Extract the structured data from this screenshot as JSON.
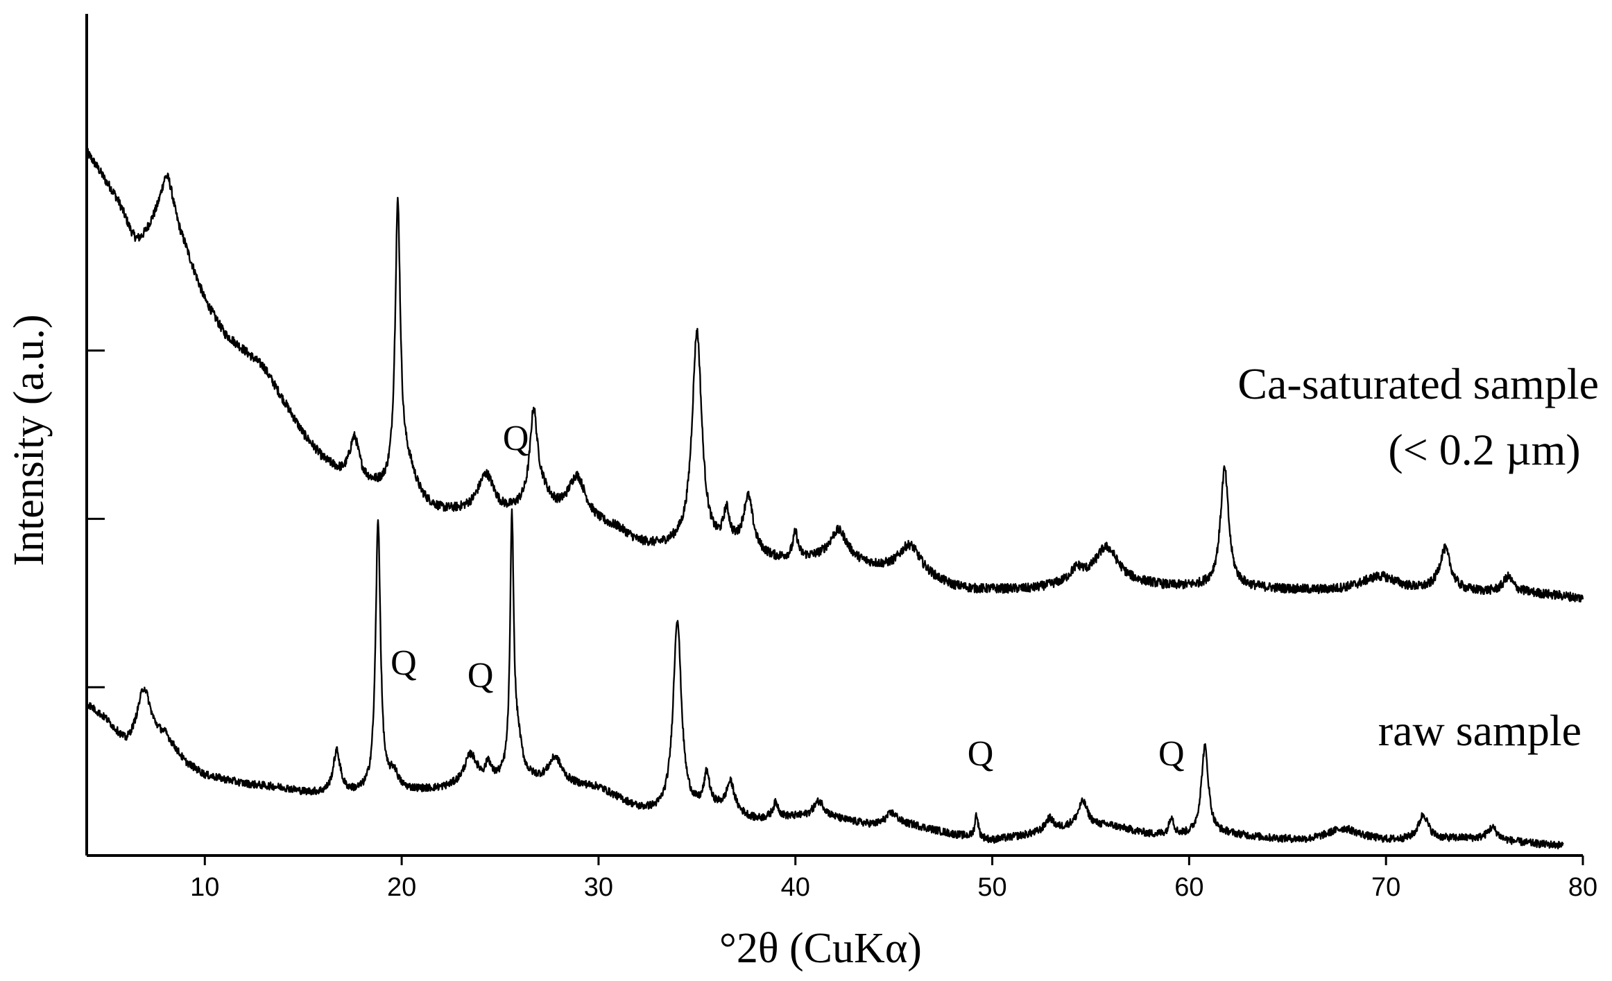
{
  "chart_data": {
    "type": "line",
    "title": "",
    "xlabel": "°2θ (CuKα)",
    "ylabel": "Intensity (a.u.)",
    "xlim": [
      4,
      80
    ],
    "ylim": [
      0,
      100
    ],
    "x_ticks": [
      10,
      20,
      30,
      40,
      50,
      60,
      70,
      80
    ],
    "y_ticks": [
      20,
      40,
      60
    ],
    "y_tick_labels_shown": false,
    "grid": false,
    "legend": "none",
    "line_color": "#000000",
    "series": [
      {
        "name": "Ca-saturated sample",
        "label_lines": [
          "Ca-saturated sample",
          "(< 0.2 µm)"
        ],
        "x_range": [
          4,
          80
        ],
        "background": [
          [
            4,
            84
          ],
          [
            5,
            81
          ],
          [
            6,
            79
          ],
          [
            7,
            77
          ],
          [
            8,
            76
          ],
          [
            9,
            72
          ],
          [
            10,
            66
          ],
          [
            11,
            62
          ],
          [
            12,
            60
          ],
          [
            13,
            58
          ],
          [
            14,
            54
          ],
          [
            15,
            50
          ],
          [
            16,
            47
          ],
          [
            17,
            45
          ],
          [
            18,
            44
          ],
          [
            19,
            43
          ],
          [
            20,
            42
          ],
          [
            21,
            41
          ],
          [
            22,
            40.5
          ],
          [
            23,
            40.5
          ],
          [
            24,
            40.5
          ],
          [
            25,
            40
          ],
          [
            26,
            40
          ],
          [
            27,
            39.5
          ],
          [
            28,
            39.5
          ],
          [
            29,
            39.5
          ],
          [
            30,
            39
          ],
          [
            31,
            38.5
          ],
          [
            32,
            37
          ],
          [
            33,
            36.5
          ],
          [
            34,
            36.5
          ],
          [
            35,
            36
          ],
          [
            36,
            36
          ],
          [
            37,
            36
          ],
          [
            38,
            35.5
          ],
          [
            39,
            35
          ],
          [
            40,
            35
          ],
          [
            41,
            35
          ],
          [
            42,
            35
          ],
          [
            43,
            34.5
          ],
          [
            44,
            34
          ],
          [
            45,
            33.5
          ],
          [
            46,
            33.2
          ],
          [
            47,
            32.5
          ],
          [
            48,
            31.8
          ],
          [
            49,
            31.5
          ],
          [
            50,
            31.5
          ],
          [
            51,
            31.5
          ],
          [
            52,
            31.5
          ],
          [
            53,
            31.8
          ],
          [
            54,
            32
          ],
          [
            55,
            32
          ],
          [
            56,
            32
          ],
          [
            57,
            32
          ],
          [
            58,
            32
          ],
          [
            59,
            31.8
          ],
          [
            60,
            31.8
          ],
          [
            61,
            31.8
          ],
          [
            62,
            31.8
          ],
          [
            63,
            31.7
          ],
          [
            64,
            31.6
          ],
          [
            65,
            31.5
          ],
          [
            66,
            31.4
          ],
          [
            67,
            31.3
          ],
          [
            68,
            31.3
          ],
          [
            69,
            31.3
          ],
          [
            70,
            31.3
          ],
          [
            71,
            31.2
          ],
          [
            72,
            31.2
          ],
          [
            73,
            31.2
          ],
          [
            74,
            31.2
          ],
          [
            75,
            31.2
          ],
          [
            76,
            31.2
          ],
          [
            77,
            31.2
          ],
          [
            78,
            31
          ],
          [
            79,
            30.8
          ],
          [
            80,
            30.5
          ]
        ],
        "peaks": [
          {
            "pos": 6.5,
            "height": -5,
            "width": 0.8
          },
          {
            "pos": 8.1,
            "height": 6,
            "width": 0.45
          },
          {
            "pos": 17.6,
            "height": 5,
            "width": 0.3
          },
          {
            "pos": 19.8,
            "height": 33,
            "width": 0.16
          },
          {
            "pos": 20.3,
            "height": 4,
            "width": 0.6
          },
          {
            "pos": 24.3,
            "height": 4.5,
            "width": 0.5
          },
          {
            "pos": 26.7,
            "height": 10,
            "width": 0.22
          },
          {
            "pos": 27.0,
            "height": 3.5,
            "width": 0.7
          },
          {
            "pos": 28.9,
            "height": 5,
            "width": 0.55
          },
          {
            "pos": 35.0,
            "height": 26,
            "width": 0.3
          },
          {
            "pos": 36.5,
            "height": 4,
            "width": 0.2
          },
          {
            "pos": 37.6,
            "height": 6.5,
            "width": 0.3
          },
          {
            "pos": 40.0,
            "height": 3,
            "width": 0.15
          },
          {
            "pos": 42.2,
            "height": 3.5,
            "width": 0.55
          },
          {
            "pos": 45.8,
            "height": 3.5,
            "width": 0.7
          },
          {
            "pos": 54.3,
            "height": 1.5,
            "width": 0.4
          },
          {
            "pos": 55.8,
            "height": 4.5,
            "width": 0.75
          },
          {
            "pos": 61.8,
            "height": 14,
            "width": 0.25
          },
          {
            "pos": 69.7,
            "height": 1.8,
            "width": 1.2
          },
          {
            "pos": 73.0,
            "height": 5,
            "width": 0.35
          },
          {
            "pos": 76.2,
            "height": 1.8,
            "width": 0.3
          }
        ],
        "noise": 0.55
      },
      {
        "name": "raw sample",
        "label_lines": [
          "raw sample"
        ],
        "x_range": [
          4,
          79
        ],
        "background": [
          [
            4,
            18
          ],
          [
            5,
            16
          ],
          [
            6,
            13
          ],
          [
            7,
            14
          ],
          [
            8,
            14
          ],
          [
            9,
            11
          ],
          [
            10,
            9.5
          ],
          [
            12,
            8.5
          ],
          [
            14,
            8
          ],
          [
            15,
            7.5
          ],
          [
            16,
            7.3
          ],
          [
            18,
            7.3
          ],
          [
            20,
            7.6
          ],
          [
            22,
            7.8
          ],
          [
            24,
            8.5
          ],
          [
            26,
            9
          ],
          [
            28,
            8.5
          ],
          [
            30,
            8
          ],
          [
            32,
            5.5
          ],
          [
            33,
            5
          ],
          [
            34,
            5
          ],
          [
            36,
            5.5
          ],
          [
            38,
            4.2
          ],
          [
            40,
            4.5
          ],
          [
            42,
            4.3
          ],
          [
            44,
            3.5
          ],
          [
            46,
            3.5
          ],
          [
            48,
            2.5
          ],
          [
            50,
            1.8
          ],
          [
            52,
            2.5
          ],
          [
            54,
            3.3
          ],
          [
            56,
            3.5
          ],
          [
            58,
            2.5
          ],
          [
            60,
            2.3
          ],
          [
            62,
            2.5
          ],
          [
            64,
            2
          ],
          [
            66,
            1.7
          ],
          [
            68,
            2
          ],
          [
            70,
            1.7
          ],
          [
            72,
            1.8
          ],
          [
            74,
            2
          ],
          [
            76,
            1.7
          ],
          [
            78,
            1.3
          ],
          [
            79,
            1.2
          ]
        ],
        "peaks": [
          {
            "pos": 6.9,
            "height": 6,
            "width": 0.4
          },
          {
            "pos": 16.7,
            "height": 5,
            "width": 0.22
          },
          {
            "pos": 18.8,
            "height": 32,
            "width": 0.15
          },
          {
            "pos": 19.6,
            "height": 2,
            "width": 0.25
          },
          {
            "pos": 23.5,
            "height": 3.5,
            "width": 0.4
          },
          {
            "pos": 24.4,
            "height": 2,
            "width": 0.15
          },
          {
            "pos": 25.6,
            "height": 30,
            "width": 0.11
          },
          {
            "pos": 25.9,
            "height": 4,
            "width": 0.25
          },
          {
            "pos": 27.8,
            "height": 3,
            "width": 0.4
          },
          {
            "pos": 34.0,
            "height": 23,
            "width": 0.25
          },
          {
            "pos": 35.5,
            "height": 4,
            "width": 0.17
          },
          {
            "pos": 36.7,
            "height": 3.5,
            "width": 0.25
          },
          {
            "pos": 39.0,
            "height": 1.8,
            "width": 0.18
          },
          {
            "pos": 41.2,
            "height": 2,
            "width": 0.35
          },
          {
            "pos": 44.9,
            "height": 1.5,
            "width": 0.4
          },
          {
            "pos": 49.2,
            "height": 2.8,
            "width": 0.1
          },
          {
            "pos": 52.9,
            "height": 1.5,
            "width": 0.25
          },
          {
            "pos": 54.6,
            "height": 3,
            "width": 0.3
          },
          {
            "pos": 59.1,
            "height": 2.2,
            "width": 0.13
          },
          {
            "pos": 60.8,
            "height": 10.5,
            "width": 0.22
          },
          {
            "pos": 67.8,
            "height": 1.2,
            "width": 1.0
          },
          {
            "pos": 71.9,
            "height": 3,
            "width": 0.3
          },
          {
            "pos": 75.4,
            "height": 1.5,
            "width": 0.3
          }
        ],
        "noise": 0.45
      }
    ],
    "annotations": [
      {
        "text": "Q",
        "x": 20.1,
        "y": 21.5
      },
      {
        "text": "Q",
        "x": 24.0,
        "y": 20.0
      },
      {
        "text": "Q",
        "x": 25.8,
        "y": 48.2
      },
      {
        "text": "Q",
        "x": 49.4,
        "y": 10.7
      },
      {
        "text": "Q",
        "x": 59.1,
        "y": 10.7
      }
    ]
  }
}
